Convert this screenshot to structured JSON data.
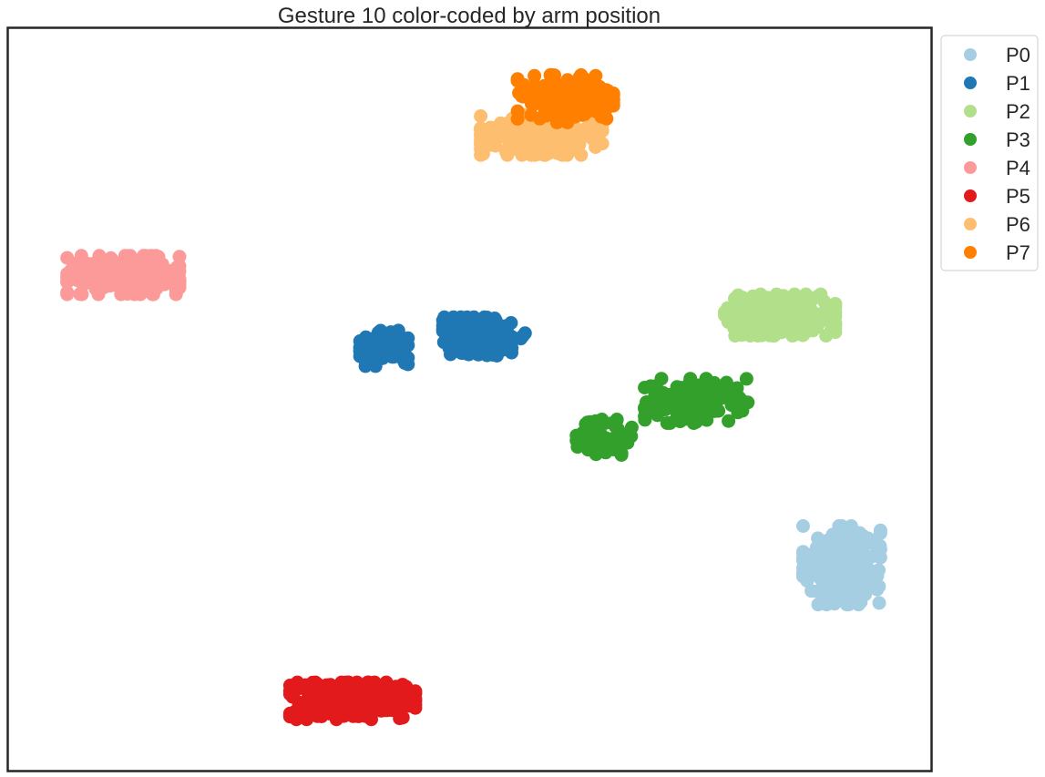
{
  "chart_data": {
    "type": "scatter",
    "title": "Gesture 10 color-coded by arm position",
    "xlabel": "",
    "ylabel": "",
    "xlim": [
      0,
      100
    ],
    "ylim": [
      0,
      100
    ],
    "ticks_shown": false,
    "grid": false,
    "legend_position": "outside right, top",
    "series": [
      {
        "name": "P0",
        "color": "#a6cee3",
        "clusters": [
          {
            "cx": 90.4,
            "cy": 27.6,
            "sx": 4.2,
            "sy": 5.3,
            "n": 230
          }
        ]
      },
      {
        "name": "P1",
        "color": "#1f78b4",
        "clusters": [
          {
            "cx": 40.7,
            "cy": 56.9,
            "sx": 2.6,
            "sy": 2.4,
            "n": 90
          },
          {
            "cx": 51.6,
            "cy": 58.5,
            "sx": 4.5,
            "sy": 2.6,
            "n": 170
          }
        ]
      },
      {
        "name": "P2",
        "color": "#b2df8a",
        "clusters": [
          {
            "cx": 83.7,
            "cy": 61.4,
            "sx": 6.0,
            "sy": 2.8,
            "n": 240
          }
        ]
      },
      {
        "name": "P3",
        "color": "#33a02c",
        "clusters": [
          {
            "cx": 64.6,
            "cy": 44.9,
            "sx": 3.0,
            "sy": 2.4,
            "n": 80
          },
          {
            "cx": 74.6,
            "cy": 49.8,
            "sx": 5.6,
            "sy": 3.0,
            "n": 150
          }
        ]
      },
      {
        "name": "P4",
        "color": "#fb9a99",
        "clusters": [
          {
            "cx": 12.4,
            "cy": 66.8,
            "sx": 6.1,
            "sy": 2.6,
            "n": 230
          }
        ]
      },
      {
        "name": "P5",
        "color": "#e31a1c",
        "clusters": [
          {
            "cx": 37.3,
            "cy": 9.3,
            "sx": 6.8,
            "sy": 2.5,
            "n": 250
          }
        ]
      },
      {
        "name": "P6",
        "color": "#fdbf6f",
        "clusters": [
          {
            "cx": 57.8,
            "cy": 85.7,
            "sx": 6.6,
            "sy": 2.7,
            "n": 200
          }
        ]
      },
      {
        "name": "P7",
        "color": "#ff7f00",
        "clusters": [
          {
            "cx": 60.4,
            "cy": 90.6,
            "sx": 5.2,
            "sy": 3.2,
            "n": 200
          }
        ]
      }
    ]
  }
}
